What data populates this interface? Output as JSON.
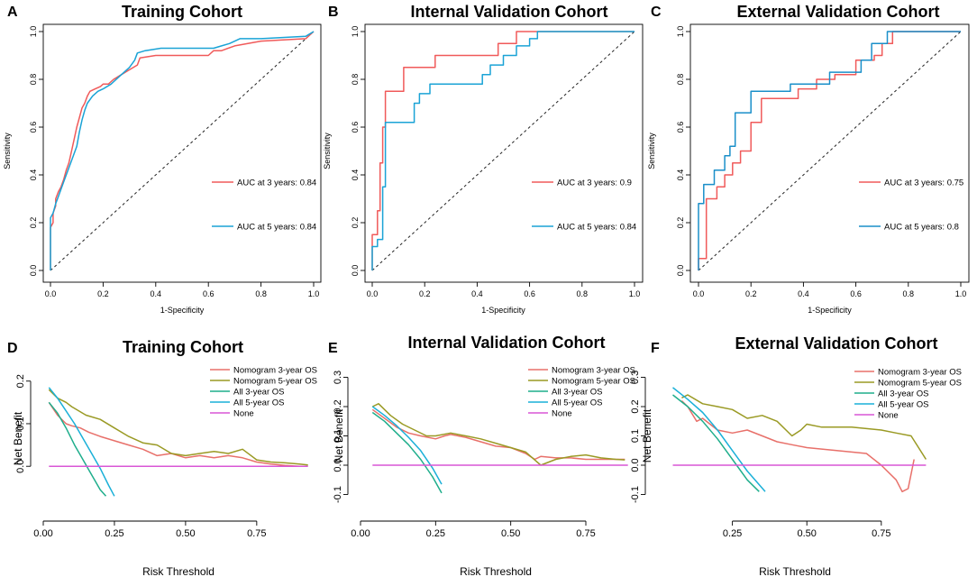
{
  "chart_data": [
    {
      "panel": "A",
      "type": "line",
      "subtype": "roc",
      "title": "Training Cohort",
      "xlabel": "1-Specificity",
      "ylabel": "Sensitivity",
      "xlim": [
        0,
        1
      ],
      "ylim": [
        0,
        1
      ],
      "xticks": [
        "0.0",
        "0.2",
        "0.4",
        "0.6",
        "0.8",
        "1.0"
      ],
      "yticks": [
        "0.0",
        "0.2",
        "0.4",
        "0.6",
        "0.8",
        "1.0"
      ],
      "diagonal": true,
      "series": [
        {
          "name": "AUC at 3 years: 0.84",
          "color": "#f05a5a",
          "x": [
            0,
            0,
            0.01,
            0.01,
            0.02,
            0.02,
            0.03,
            0.04,
            0.05,
            0.06,
            0.07,
            0.08,
            0.09,
            0.1,
            0.11,
            0.12,
            0.13,
            0.14,
            0.15,
            0.17,
            0.19,
            0.2,
            0.22,
            0.24,
            0.27,
            0.3,
            0.33,
            0.34,
            0.4,
            0.5,
            0.6,
            0.62,
            0.65,
            0.7,
            0.8,
            0.97,
            1.0
          ],
          "y": [
            0,
            0.18,
            0.2,
            0.24,
            0.27,
            0.3,
            0.33,
            0.35,
            0.38,
            0.42,
            0.45,
            0.5,
            0.55,
            0.6,
            0.64,
            0.68,
            0.7,
            0.73,
            0.75,
            0.76,
            0.77,
            0.78,
            0.78,
            0.8,
            0.82,
            0.84,
            0.86,
            0.89,
            0.9,
            0.9,
            0.9,
            0.92,
            0.92,
            0.94,
            0.96,
            0.97,
            1.0
          ]
        },
        {
          "name": "AUC at 5 years: 0.84",
          "color": "#1aa3d6",
          "x": [
            0,
            0,
            0.01,
            0.02,
            0.03,
            0.04,
            0.05,
            0.06,
            0.08,
            0.1,
            0.11,
            0.12,
            0.13,
            0.14,
            0.16,
            0.18,
            0.2,
            0.23,
            0.25,
            0.27,
            0.3,
            0.32,
            0.33,
            0.36,
            0.42,
            0.5,
            0.62,
            0.65,
            0.68,
            0.72,
            0.8,
            0.97,
            1.0
          ],
          "y": [
            0,
            0.22,
            0.24,
            0.28,
            0.31,
            0.34,
            0.37,
            0.4,
            0.46,
            0.52,
            0.58,
            0.63,
            0.67,
            0.7,
            0.73,
            0.75,
            0.76,
            0.78,
            0.8,
            0.82,
            0.85,
            0.88,
            0.91,
            0.92,
            0.93,
            0.93,
            0.93,
            0.94,
            0.95,
            0.97,
            0.97,
            0.98,
            1.0
          ]
        }
      ]
    },
    {
      "panel": "B",
      "type": "line",
      "subtype": "roc",
      "title": "Internal Validation Cohort",
      "xlabel": "1-Specificity",
      "ylabel": "Sensitivity",
      "xlim": [
        0,
        1
      ],
      "ylim": [
        0,
        1
      ],
      "xticks": [
        "0.0",
        "0.2",
        "0.4",
        "0.6",
        "0.8",
        "1.0"
      ],
      "yticks": [
        "0.0",
        "0.2",
        "0.4",
        "0.6",
        "0.8",
        "1.0"
      ],
      "diagonal": true,
      "series": [
        {
          "name": "AUC at 3 years: 0.9",
          "color": "#f05a5a",
          "x": [
            0,
            0,
            0.02,
            0.02,
            0.03,
            0.03,
            0.04,
            0.04,
            0.05,
            0.05,
            0.07,
            0.07,
            0.12,
            0.12,
            0.16,
            0.16,
            0.24,
            0.24,
            0.48,
            0.48,
            0.55,
            0.55,
            1.0
          ],
          "y": [
            0,
            0.15,
            0.15,
            0.25,
            0.25,
            0.45,
            0.45,
            0.6,
            0.6,
            0.75,
            0.75,
            0.75,
            0.75,
            0.85,
            0.85,
            0.85,
            0.85,
            0.9,
            0.9,
            0.95,
            0.95,
            1.0,
            1.0
          ]
        },
        {
          "name": "AUC at 5 years: 0.84",
          "color": "#1aa3d6",
          "x": [
            0,
            0,
            0.02,
            0.02,
            0.04,
            0.04,
            0.05,
            0.05,
            0.12,
            0.12,
            0.16,
            0.16,
            0.18,
            0.18,
            0.22,
            0.22,
            0.42,
            0.42,
            0.45,
            0.45,
            0.5,
            0.5,
            0.55,
            0.55,
            0.6,
            0.6,
            0.63,
            0.63,
            1.0
          ],
          "y": [
            0,
            0.1,
            0.1,
            0.13,
            0.13,
            0.35,
            0.35,
            0.62,
            0.62,
            0.62,
            0.62,
            0.7,
            0.7,
            0.74,
            0.74,
            0.78,
            0.78,
            0.82,
            0.82,
            0.86,
            0.86,
            0.9,
            0.9,
            0.94,
            0.94,
            0.97,
            0.97,
            1.0,
            1.0
          ]
        }
      ]
    },
    {
      "panel": "C",
      "type": "line",
      "subtype": "roc",
      "title": "External Validation Cohort",
      "xlabel": "1-Specificity",
      "ylabel": "Sensitivity",
      "xlim": [
        0,
        1
      ],
      "ylim": [
        0,
        1
      ],
      "xticks": [
        "0.0",
        "0.2",
        "0.4",
        "0.6",
        "0.8",
        "1.0"
      ],
      "yticks": [
        "0.0",
        "0.2",
        "0.4",
        "0.6",
        "0.8",
        "1.0"
      ],
      "diagonal": true,
      "series": [
        {
          "name": "AUC at 3 years: 0.75",
          "color": "#f05a5a",
          "x": [
            0,
            0,
            0.03,
            0.03,
            0.07,
            0.07,
            0.1,
            0.1,
            0.13,
            0.13,
            0.16,
            0.16,
            0.2,
            0.2,
            0.24,
            0.24,
            0.38,
            0.38,
            0.45,
            0.45,
            0.52,
            0.52,
            0.6,
            0.6,
            0.67,
            0.67,
            0.7,
            0.7,
            0.74,
            0.74,
            1.0
          ],
          "y": [
            0,
            0.05,
            0.05,
            0.3,
            0.3,
            0.35,
            0.35,
            0.4,
            0.4,
            0.45,
            0.45,
            0.5,
            0.5,
            0.62,
            0.62,
            0.72,
            0.72,
            0.76,
            0.76,
            0.8,
            0.8,
            0.82,
            0.82,
            0.88,
            0.88,
            0.9,
            0.9,
            0.95,
            0.95,
            1.0,
            1.0
          ]
        },
        {
          "name": "AUC at 5 years: 0.8",
          "color": "#1a8fc9",
          "x": [
            0,
            0,
            0.02,
            0.02,
            0.06,
            0.06,
            0.1,
            0.1,
            0.12,
            0.12,
            0.14,
            0.14,
            0.2,
            0.2,
            0.35,
            0.35,
            0.5,
            0.5,
            0.62,
            0.62,
            0.66,
            0.66,
            0.72,
            0.72,
            1.0
          ],
          "y": [
            0,
            0.28,
            0.28,
            0.36,
            0.36,
            0.42,
            0.42,
            0.48,
            0.48,
            0.52,
            0.52,
            0.66,
            0.66,
            0.75,
            0.75,
            0.78,
            0.78,
            0.83,
            0.83,
            0.88,
            0.88,
            0.95,
            0.95,
            1.0,
            1.0
          ]
        }
      ]
    },
    {
      "panel": "D",
      "type": "line",
      "subtype": "decision-curve",
      "title": "Training Cohort",
      "xlabel": "Risk Threshold",
      "ylabel": "Net Benefit",
      "xlim": [
        0,
        0.95
      ],
      "ylim": [
        -0.08,
        0.21
      ],
      "xticks": [
        "0.00",
        "0.25",
        "0.50",
        "0.75"
      ],
      "yticks": [
        "0.0",
        "0.1",
        "0.2"
      ],
      "series": [
        {
          "name": "Nomogram 3-year OS",
          "color": "#e8706a",
          "x": [
            0.02,
            0.05,
            0.08,
            0.1,
            0.13,
            0.16,
            0.2,
            0.25,
            0.3,
            0.35,
            0.4,
            0.45,
            0.5,
            0.55,
            0.6,
            0.65,
            0.7,
            0.75,
            0.8,
            0.85,
            0.9
          ],
          "y": [
            0.15,
            0.12,
            0.1,
            0.095,
            0.09,
            0.08,
            0.07,
            0.06,
            0.05,
            0.04,
            0.025,
            0.03,
            0.02,
            0.025,
            0.02,
            0.025,
            0.02,
            0.01,
            0.005,
            0.002,
            0.0
          ]
        },
        {
          "name": "Nomogram 5-year OS",
          "color": "#9a9a24",
          "x": [
            0.02,
            0.05,
            0.08,
            0.1,
            0.15,
            0.2,
            0.25,
            0.3,
            0.35,
            0.4,
            0.45,
            0.5,
            0.55,
            0.6,
            0.65,
            0.7,
            0.75,
            0.8,
            0.85,
            0.9,
            0.93
          ],
          "y": [
            0.18,
            0.16,
            0.15,
            0.14,
            0.12,
            0.11,
            0.09,
            0.07,
            0.055,
            0.05,
            0.03,
            0.025,
            0.03,
            0.035,
            0.03,
            0.04,
            0.015,
            0.01,
            0.008,
            0.005,
            0.003
          ]
        },
        {
          "name": "All 3-year OS",
          "color": "#1fae8c",
          "x": [
            0.02,
            0.05,
            0.08,
            0.11,
            0.14,
            0.17,
            0.2,
            0.22
          ],
          "y": [
            0.15,
            0.125,
            0.09,
            0.05,
            0.015,
            -0.02,
            -0.055,
            -0.07
          ]
        },
        {
          "name": "All 5-year OS",
          "color": "#1ab0d8",
          "x": [
            0.02,
            0.05,
            0.08,
            0.11,
            0.14,
            0.17,
            0.2,
            0.23,
            0.25
          ],
          "y": [
            0.185,
            0.16,
            0.13,
            0.1,
            0.065,
            0.03,
            -0.005,
            -0.045,
            -0.07
          ]
        },
        {
          "name": "None",
          "color": "#d957d6",
          "x": [
            0.02,
            0.93
          ],
          "y": [
            0,
            0
          ]
        }
      ]
    },
    {
      "panel": "E",
      "type": "line",
      "subtype": "decision-curve",
      "title": "Internal Validation Cohort",
      "xlabel": "Risk Threshold",
      "ylabel": "Net Benefit",
      "xlim": [
        0,
        0.9
      ],
      "ylim": [
        -0.12,
        0.32
      ],
      "xticks": [
        "0.00",
        "0.25",
        "0.50",
        "0.75"
      ],
      "yticks": [
        "-0.1",
        "0.0",
        "0.1",
        "0.2",
        "0.3"
      ],
      "series": [
        {
          "name": "Nomogram 3-year OS",
          "color": "#e8706a",
          "x": [
            0.04,
            0.08,
            0.12,
            0.16,
            0.2,
            0.25,
            0.28,
            0.3,
            0.35,
            0.4,
            0.45,
            0.5,
            0.55,
            0.58,
            0.6,
            0.65,
            0.7,
            0.75,
            0.8,
            0.85,
            0.88
          ],
          "y": [
            0.19,
            0.16,
            0.13,
            0.11,
            0.1,
            0.09,
            0.1,
            0.105,
            0.095,
            0.08,
            0.065,
            0.06,
            0.04,
            0.02,
            0.03,
            0.025,
            0.025,
            0.02,
            0.02,
            0.02,
            0.02
          ]
        },
        {
          "name": "Nomogram 5-year OS",
          "color": "#9a9a24",
          "x": [
            0.04,
            0.06,
            0.1,
            0.14,
            0.18,
            0.22,
            0.25,
            0.3,
            0.35,
            0.4,
            0.45,
            0.5,
            0.55,
            0.6,
            0.65,
            0.7,
            0.75,
            0.8,
            0.85,
            0.88
          ],
          "y": [
            0.2,
            0.21,
            0.17,
            0.14,
            0.12,
            0.1,
            0.1,
            0.11,
            0.1,
            0.09,
            0.075,
            0.06,
            0.045,
            0.0,
            0.02,
            0.03,
            0.035,
            0.025,
            0.02,
            0.018
          ]
        },
        {
          "name": "All 3-year OS",
          "color": "#1fae8c",
          "x": [
            0.04,
            0.08,
            0.12,
            0.16,
            0.2,
            0.24,
            0.27
          ],
          "y": [
            0.18,
            0.15,
            0.11,
            0.07,
            0.02,
            -0.04,
            -0.095
          ]
        },
        {
          "name": "All 5-year OS",
          "color": "#1ab0d8",
          "x": [
            0.04,
            0.08,
            0.12,
            0.16,
            0.2,
            0.24,
            0.27
          ],
          "y": [
            0.2,
            0.17,
            0.135,
            0.095,
            0.05,
            -0.01,
            -0.065
          ]
        },
        {
          "name": "None",
          "color": "#d957d6",
          "x": [
            0.04,
            0.89
          ],
          "y": [
            0,
            0
          ]
        }
      ]
    },
    {
      "panel": "F",
      "type": "line",
      "subtype": "decision-curve",
      "title": "External Validation Cohort",
      "xlabel": "Risk Threshold",
      "ylabel": "Net Benefit",
      "xlim": [
        0,
        0.92
      ],
      "ylim": [
        -0.12,
        0.32
      ],
      "xticks": [
        "0.25",
        "0.50",
        "0.75"
      ],
      "yticks": [
        "-0.1",
        "0.0",
        "0.1",
        "0.2",
        "0.3"
      ],
      "series": [
        {
          "name": "Nomogram 3-year OS",
          "color": "#e8706a",
          "x": [
            0.08,
            0.1,
            0.13,
            0.15,
            0.2,
            0.25,
            0.3,
            0.35,
            0.4,
            0.45,
            0.5,
            0.55,
            0.6,
            0.65,
            0.7,
            0.75,
            0.8,
            0.82,
            0.84,
            0.86
          ],
          "y": [
            0.22,
            0.2,
            0.15,
            0.16,
            0.12,
            0.11,
            0.12,
            0.1,
            0.08,
            0.07,
            0.06,
            0.055,
            0.05,
            0.045,
            0.04,
            0.0,
            -0.05,
            -0.09,
            -0.08,
            0.02
          ]
        },
        {
          "name": "Nomogram 5-year OS",
          "color": "#9a9a24",
          "x": [
            0.08,
            0.1,
            0.15,
            0.2,
            0.25,
            0.3,
            0.35,
            0.4,
            0.45,
            0.48,
            0.5,
            0.55,
            0.6,
            0.65,
            0.7,
            0.75,
            0.8,
            0.85,
            0.9
          ],
          "y": [
            0.23,
            0.24,
            0.21,
            0.2,
            0.19,
            0.16,
            0.17,
            0.15,
            0.1,
            0.12,
            0.14,
            0.13,
            0.13,
            0.13,
            0.125,
            0.12,
            0.11,
            0.1,
            0.02
          ]
        },
        {
          "name": "All 3-year OS",
          "color": "#1fae8c",
          "x": [
            0.05,
            0.1,
            0.15,
            0.2,
            0.25,
            0.3,
            0.34
          ],
          "y": [
            0.24,
            0.2,
            0.15,
            0.09,
            0.02,
            -0.05,
            -0.09
          ]
        },
        {
          "name": "All 5-year OS",
          "color": "#1ab0d8",
          "x": [
            0.05,
            0.1,
            0.15,
            0.2,
            0.25,
            0.3,
            0.36
          ],
          "y": [
            0.265,
            0.225,
            0.18,
            0.12,
            0.05,
            -0.02,
            -0.09
          ]
        },
        {
          "name": "None",
          "color": "#d957d6",
          "x": [
            0.05,
            0.9
          ],
          "y": [
            0,
            0
          ]
        }
      ]
    }
  ]
}
